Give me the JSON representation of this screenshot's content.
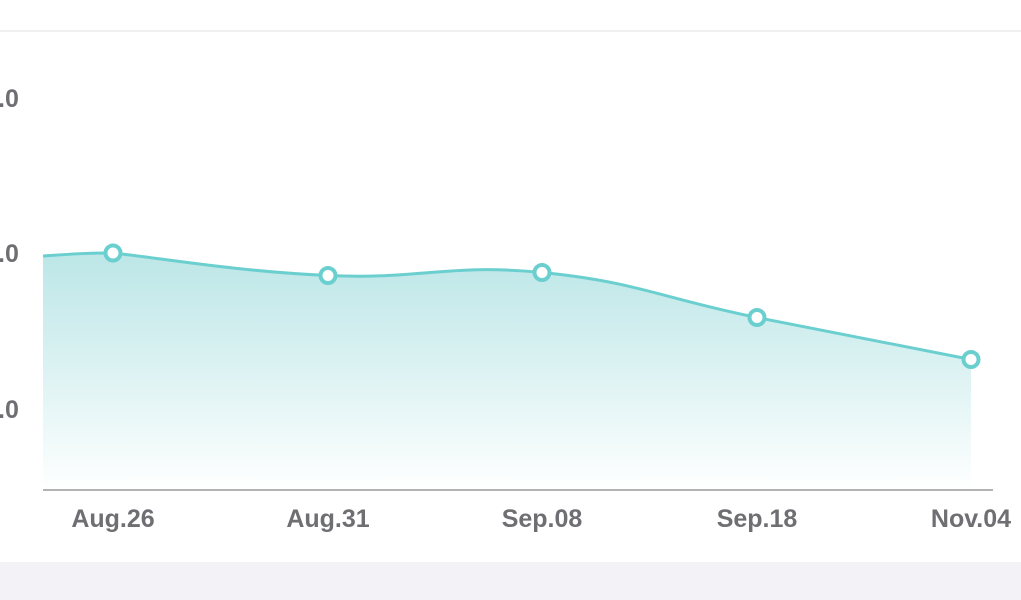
{
  "chart_data": {
    "type": "area",
    "x": [
      "Aug.26",
      "Aug.31",
      "Sep.08",
      "Sep.18",
      "Nov.04"
    ],
    "values": [
      75.8,
      74.3,
      74.5,
      71.5,
      68.7
    ],
    "ytick_labels": [
      ".0",
      ".0",
      ".0"
    ],
    "ylim": [
      60,
      90
    ],
    "grid": false,
    "colors": {
      "line": "#6ccfcf",
      "marker": "#6ccfcf",
      "fill_top": "#b9e5e6",
      "fill_bottom": "#ffffff",
      "axis": "#9a9a9a",
      "tick_text": "#6e6e73"
    }
  }
}
